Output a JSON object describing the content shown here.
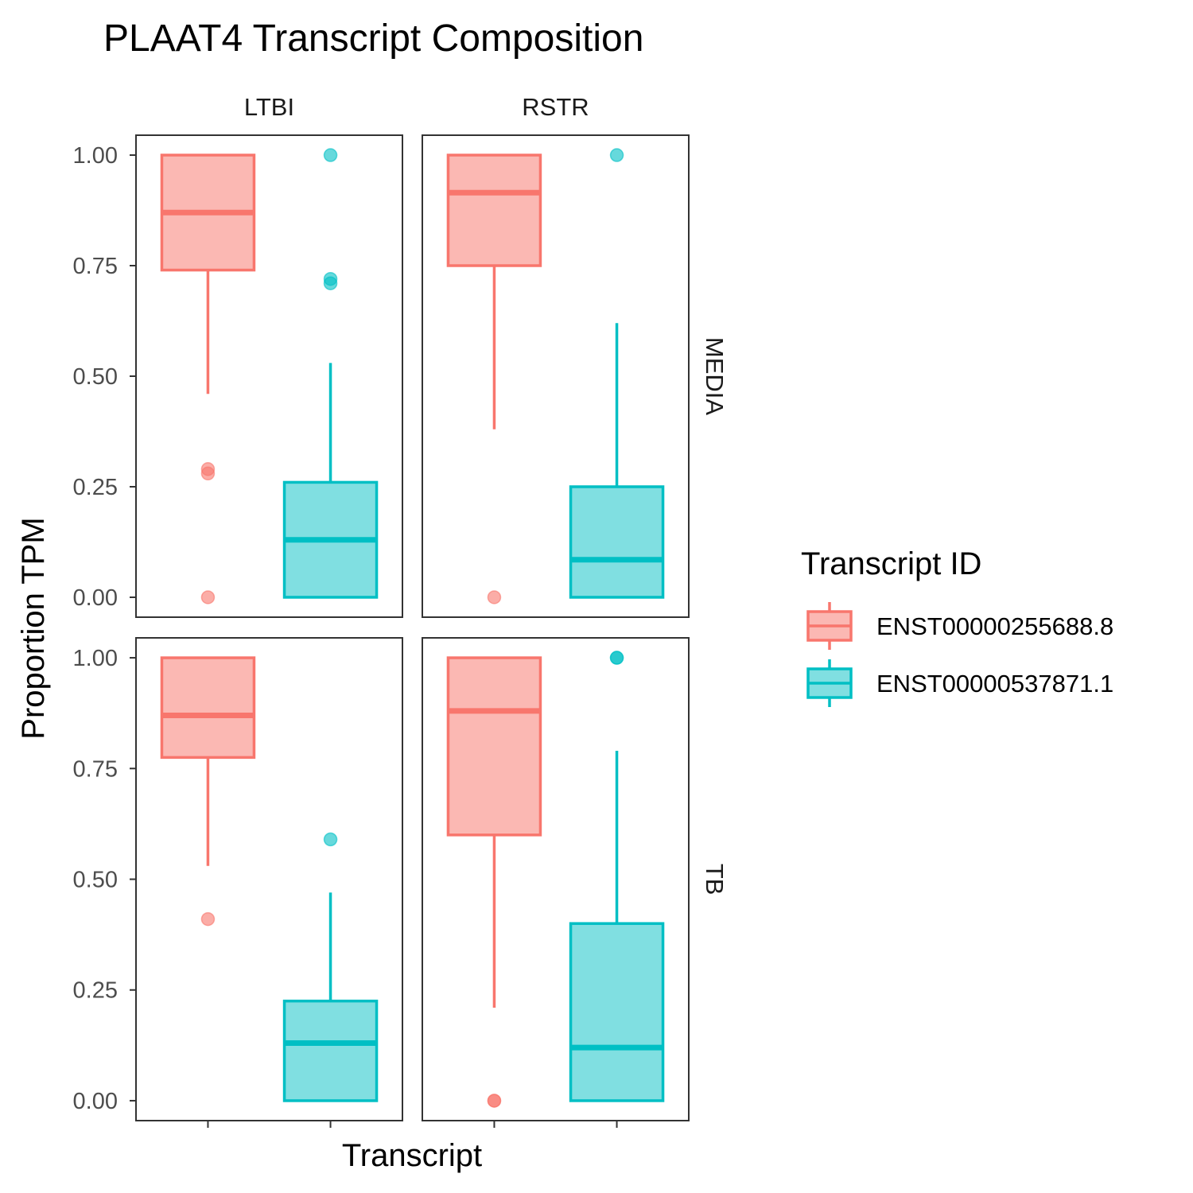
{
  "chart_data": {
    "type": "boxplot",
    "title": "PLAAT4 Transcript Composition",
    "xlabel": "Transcript",
    "ylabel": "Proportion TPM",
    "ylim": [
      -0.045,
      1.045
    ],
    "y_ticks": [
      "0.00",
      "0.25",
      "0.50",
      "0.75",
      "1.00"
    ],
    "y_tick_values": [
      0,
      0.25,
      0.5,
      0.75,
      1.0
    ],
    "column_facets": [
      "LTBI",
      "RSTR"
    ],
    "row_facets": [
      "MEDIA",
      "TB"
    ],
    "legend": {
      "title": "Transcript ID",
      "position": "right",
      "entries": [
        {
          "label": "ENST00000255688.8",
          "color": "#F8766D",
          "fill": "#FBB8B3"
        },
        {
          "label": "ENST00000537871.1",
          "color": "#00BFC4",
          "fill": "#80DFE1"
        }
      ]
    },
    "x_tick_labels_shown": false,
    "grid": false,
    "panels": [
      {
        "column": "LTBI",
        "row": "MEDIA",
        "boxes": [
          {
            "transcript": "ENST00000255688.8",
            "lower_whisker": 0.46,
            "q1": 0.74,
            "median": 0.87,
            "q3": 1.0,
            "upper_whisker": 1.0,
            "outliers": [
              0.29,
              0.28,
              0.0
            ]
          },
          {
            "transcript": "ENST00000537871.1",
            "lower_whisker": 0.0,
            "q1": 0.0,
            "median": 0.13,
            "q3": 0.26,
            "upper_whisker": 0.53,
            "outliers": [
              1.0,
              0.72,
              0.71
            ]
          }
        ]
      },
      {
        "column": "RSTR",
        "row": "MEDIA",
        "boxes": [
          {
            "transcript": "ENST00000255688.8",
            "lower_whisker": 0.38,
            "q1": 0.75,
            "median": 0.915,
            "q3": 1.0,
            "upper_whisker": 1.0,
            "outliers": [
              0.0
            ]
          },
          {
            "transcript": "ENST00000537871.1",
            "lower_whisker": 0.0,
            "q1": 0.0,
            "median": 0.085,
            "q3": 0.25,
            "upper_whisker": 0.62,
            "outliers": [
              1.0
            ]
          }
        ]
      },
      {
        "column": "LTBI",
        "row": "TB",
        "boxes": [
          {
            "transcript": "ENST00000255688.8",
            "lower_whisker": 0.53,
            "q1": 0.775,
            "median": 0.87,
            "q3": 1.0,
            "upper_whisker": 1.0,
            "outliers": [
              0.41
            ]
          },
          {
            "transcript": "ENST00000537871.1",
            "lower_whisker": 0.0,
            "q1": 0.0,
            "median": 0.13,
            "q3": 0.225,
            "upper_whisker": 0.47,
            "outliers": [
              0.59
            ]
          }
        ]
      },
      {
        "column": "RSTR",
        "row": "TB",
        "boxes": [
          {
            "transcript": "ENST00000255688.8",
            "lower_whisker": 0.21,
            "q1": 0.6,
            "median": 0.88,
            "q3": 1.0,
            "upper_whisker": 1.0,
            "outliers": [
              0.0,
              0.0
            ]
          },
          {
            "transcript": "ENST00000537871.1",
            "lower_whisker": 0.0,
            "q1": 0.0,
            "median": 0.12,
            "q3": 0.4,
            "upper_whisker": 0.79,
            "outliers": [
              1.0,
              1.0
            ]
          }
        ]
      }
    ]
  }
}
